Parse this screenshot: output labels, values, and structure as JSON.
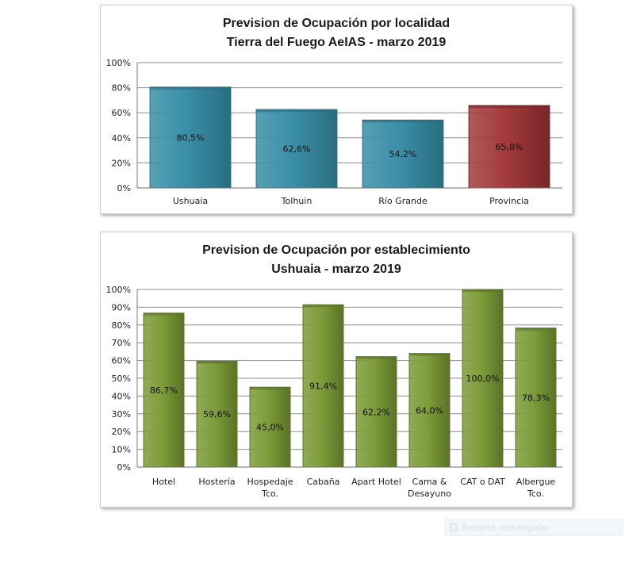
{
  "chart_data": [
    {
      "type": "bar",
      "title": "Prevision de Ocupación por localidad",
      "subtitle": "Tierra del Fuego AeIAS - marzo 2019",
      "categories": [
        "Ushuaia",
        "Tolhuin",
        "Río Grande",
        "Provincia"
      ],
      "values": [
        80.5,
        62.6,
        54.2,
        65.8
      ],
      "data_labels": [
        "80,5%",
        "62,6%",
        "54,2%",
        "65,8%"
      ],
      "bar_colors": [
        "#3a8fa8",
        "#3a8fa8",
        "#3a8fa8",
        "#a33b3d"
      ],
      "bar_edge_colors": [
        "#2a6d80",
        "#2a6d80",
        "#2a6d80",
        "#7a2628"
      ],
      "ylim": [
        0,
        100
      ],
      "yticks": [
        0,
        20,
        40,
        60,
        80,
        100
      ],
      "ytick_labels": [
        "0%",
        "20%",
        "40%",
        "60%",
        "80%",
        "100%"
      ],
      "grid": true,
      "legend": "none",
      "xlabel": "",
      "ylabel": ""
    },
    {
      "type": "bar",
      "title": "Prevision de Ocupación por establecimiento",
      "subtitle": "Ushuaia - marzo 2019",
      "categories": [
        "Hotel",
        "Hostería",
        "Hospedaje Tco.",
        "Cabaña",
        "Apart Hotel",
        "Cama & Desayuno",
        "CAT o DAT",
        "Albergue Tco."
      ],
      "category_lines": [
        [
          "Hotel"
        ],
        [
          "Hostería"
        ],
        [
          "Hospedaje",
          "Tco."
        ],
        [
          "Cabaña"
        ],
        [
          "Apart Hotel"
        ],
        [
          "Cama &",
          "Desayuno"
        ],
        [
          "CAT o DAT"
        ],
        [
          "Albergue",
          "Tco."
        ]
      ],
      "values": [
        86.7,
        59.6,
        45.0,
        91.4,
        62.2,
        64.0,
        100.0,
        78.3
      ],
      "data_labels": [
        "86,7%",
        "59,6%",
        "45,0%",
        "91,4%",
        "62,2%",
        "64,0%",
        "100,0%",
        "78,3%"
      ],
      "bar_colors": [
        "#7e9c3a",
        "#7e9c3a",
        "#7e9c3a",
        "#7e9c3a",
        "#7e9c3a",
        "#7e9c3a",
        "#7e9c3a",
        "#7e9c3a"
      ],
      "bar_edge_colors": [
        "#5a7326",
        "#5a7326",
        "#5a7326",
        "#5a7326",
        "#5a7326",
        "#5a7326",
        "#5a7326",
        "#5a7326"
      ],
      "ylim": [
        0,
        100
      ],
      "yticks": [
        0,
        10,
        20,
        30,
        40,
        50,
        60,
        70,
        80,
        90,
        100
      ],
      "ytick_labels": [
        "0%",
        "10%",
        "20%",
        "30%",
        "40%",
        "50%",
        "60%",
        "70%",
        "80%",
        "90%",
        "100%"
      ],
      "grid": true,
      "legend": "none",
      "xlabel": "",
      "ylabel": ""
    }
  ],
  "overlay": {
    "label": "Recorte rectangular",
    "icon": "scissors-icon"
  }
}
